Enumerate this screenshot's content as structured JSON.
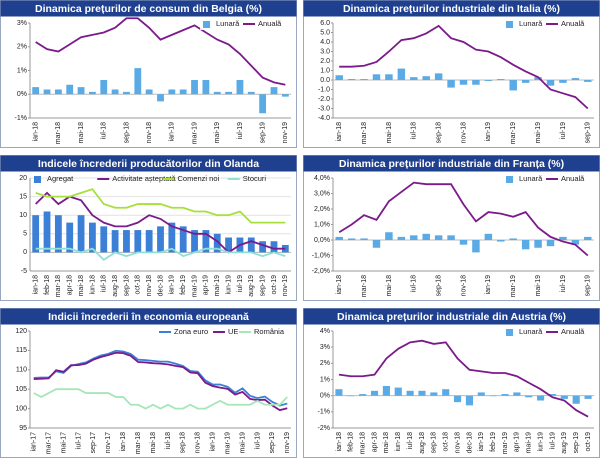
{
  "chart_data": [
    {
      "type": "combo",
      "title": "Dinamica prețurilor de consum din Belgia (%)",
      "legend": "top-right",
      "grid": false,
      "categories": [
        "ian-18",
        null,
        "mar-18",
        null,
        "mai-18",
        null,
        "iul-18",
        null,
        "sep-18",
        null,
        "nov-18",
        null,
        "ian-19",
        null,
        "mar-19",
        null,
        "mai-19",
        null,
        "iul-19",
        null,
        "sep-19",
        null,
        "nov-19"
      ],
      "ylim": [
        -1,
        3
      ],
      "yticks": [
        {
          "value": -1,
          "label": "-1%"
        },
        {
          "value": 0,
          "label": "0%"
        },
        {
          "value": 1,
          "label": "1%"
        },
        {
          "value": 2,
          "label": "2%"
        },
        {
          "value": 3,
          "label": "3%"
        }
      ],
      "series": [
        {
          "name": "Lunară",
          "kind": "bar",
          "color": "#5aaae6",
          "values": [
            0.3,
            0.2,
            0.2,
            0.4,
            0.3,
            0.1,
            0.6,
            0.2,
            0.1,
            1.1,
            0.2,
            -0.3,
            0.2,
            0.2,
            0.6,
            0.6,
            0.1,
            0.1,
            0.6,
            0.1,
            -0.8,
            0.3,
            -0.1
          ]
        },
        {
          "name": "Anuală",
          "kind": "line",
          "color": "#7b1a8a",
          "values": [
            2.2,
            1.9,
            1.8,
            2.1,
            2.4,
            2.5,
            2.6,
            2.8,
            3.2,
            3.2,
            2.8,
            2.3,
            2.5,
            2.7,
            2.9,
            2.6,
            2.3,
            2.1,
            1.7,
            1.2,
            0.7,
            0.5,
            0.4
          ]
        }
      ]
    },
    {
      "type": "combo",
      "title": "Dinamica prețurilor industriale din Italia (%)",
      "legend": "top-right",
      "grid": false,
      "categories": [
        "ian-18",
        null,
        "mar-18",
        null,
        "mai-18",
        null,
        "iul-18",
        null,
        "sep-18",
        null,
        "nov-18",
        null,
        "ian-19",
        null,
        "mar-19",
        null,
        "mai-19",
        null,
        "iul-19",
        null,
        "sep-19"
      ],
      "ylim": [
        -4,
        6
      ],
      "yticks": [
        {
          "value": -4,
          "label": "-4.0"
        },
        {
          "value": -3,
          "label": "-3.0"
        },
        {
          "value": -2,
          "label": "-2.0"
        },
        {
          "value": -1,
          "label": "-1.0"
        },
        {
          "value": 0,
          "label": "0.0"
        },
        {
          "value": 1,
          "label": "1.0"
        },
        {
          "value": 2,
          "label": "2.0"
        },
        {
          "value": 3,
          "label": "3.0"
        },
        {
          "value": 4,
          "label": "4.0"
        },
        {
          "value": 5,
          "label": "5.0"
        },
        {
          "value": 6,
          "label": "6.0"
        }
      ],
      "series": [
        {
          "name": "Lunară",
          "kind": "bar",
          "color": "#5aaae6",
          "values": [
            0.5,
            0.1,
            0.1,
            0.6,
            0.6,
            1.2,
            0.3,
            0.4,
            0.7,
            -0.8,
            -0.5,
            -0.5,
            -0.1,
            0.1,
            -1.1,
            -0.3,
            0.3,
            -0.6,
            -0.3,
            0.2,
            -0.2
          ]
        },
        {
          "name": "Anuală",
          "kind": "line",
          "color": "#7b1a8a",
          "values": [
            1.4,
            1.4,
            1.5,
            1.9,
            3.0,
            4.2,
            4.4,
            4.9,
            5.7,
            4.4,
            4.0,
            3.2,
            3.0,
            2.4,
            1.6,
            0.9,
            0.3,
            -1.0,
            -1.4,
            -1.8,
            -3.0
          ]
        }
      ]
    },
    {
      "type": "combo",
      "title": "Indicele încrederii producătorilor din Olanda",
      "legend": "top",
      "grid": true,
      "categories": [
        "ian-18",
        "feb-18",
        "mar-18",
        "apr-18",
        "mai-18",
        "iun-18",
        "iul-18",
        "aug-18",
        "sep-18",
        "oct-18",
        "nov-18",
        "dec-18",
        "ian-19",
        "feb-19",
        "mar-19",
        "apr-19",
        "mai-19",
        "iun-19",
        "iul-19",
        "aug-19",
        "sep-19",
        "oct-19",
        "nov-19"
      ],
      "ylim": [
        -5,
        20
      ],
      "yticks": [
        -5,
        0,
        5,
        10,
        15,
        20
      ],
      "series": [
        {
          "name": "Agregat",
          "kind": "bar",
          "color": "#3c7fd6",
          "values": [
            10,
            11,
            10,
            8,
            10,
            8,
            7,
            6,
            6,
            6,
            6,
            7,
            8,
            7,
            6,
            6,
            5,
            4,
            4,
            4,
            3,
            3,
            2
          ]
        },
        {
          "name": "Activitate așteptată",
          "kind": "line",
          "color": "#7b1a8a",
          "values": [
            13,
            16,
            13,
            15,
            14,
            10,
            8,
            7,
            7,
            8,
            10,
            9,
            7,
            6,
            5,
            5,
            3,
            0,
            2,
            3,
            2,
            1,
            1
          ]
        },
        {
          "name": "Comenzi noi",
          "kind": "line",
          "color": "#a6e03c",
          "values": [
            16,
            15,
            15,
            15,
            16,
            17,
            13,
            12,
            12,
            13,
            13,
            13,
            12,
            12,
            11,
            11,
            10,
            10,
            11,
            8,
            8,
            8,
            8
          ]
        },
        {
          "name": "Stocuri",
          "kind": "line",
          "color": "#8fe0d8",
          "values": [
            1,
            1,
            1,
            1,
            0,
            1,
            -2,
            0,
            -1,
            0,
            0,
            0,
            1,
            -1,
            0,
            1,
            1,
            0,
            0,
            0,
            -1,
            0,
            -1
          ]
        }
      ]
    },
    {
      "type": "combo",
      "title": "Dinamica prețurilor industriale din Franța (%)",
      "legend": "top-right",
      "grid": false,
      "categories": [
        "ian-18",
        null,
        "mar-18",
        null,
        "mai-18",
        null,
        "iul-18",
        null,
        "sep-18",
        null,
        "nov-18",
        null,
        "ian-19",
        null,
        "mar-19",
        null,
        "mai-19",
        null,
        "iul-19",
        null,
        "sep-19"
      ],
      "ylim": [
        -2,
        4
      ],
      "yticks": [
        {
          "value": -2,
          "label": "-2,0%"
        },
        {
          "value": -1,
          "label": "-1,0%"
        },
        {
          "value": 0,
          "label": "0,0%"
        },
        {
          "value": 1,
          "label": "1,0%"
        },
        {
          "value": 2,
          "label": "2,0%"
        },
        {
          "value": 3,
          "label": "3,0%"
        },
        {
          "value": 4,
          "label": "4,0%"
        }
      ],
      "series": [
        {
          "name": "Lunară",
          "kind": "bar",
          "color": "#5aaae6",
          "values": [
            0.2,
            0.1,
            0.1,
            -0.5,
            0.5,
            0.2,
            0.3,
            0.4,
            0.3,
            0.3,
            -0.3,
            -0.8,
            0.4,
            -0.1,
            0.1,
            -0.6,
            -0.5,
            -0.4,
            0.2,
            -0.3,
            0.2
          ]
        },
        {
          "name": "Anuală",
          "kind": "line",
          "color": "#7b1a8a",
          "values": [
            0.5,
            1.0,
            1.6,
            1.3,
            2.5,
            3.1,
            3.7,
            3.6,
            3.6,
            3.6,
            2.3,
            1.2,
            1.8,
            1.7,
            1.5,
            1.8,
            0.8,
            0.2,
            -0.1,
            -0.3,
            -1.0
          ]
        }
      ]
    },
    {
      "type": "line",
      "title": "Indicii încrederii în economia europeană",
      "legend": "top-right",
      "grid": false,
      "categories": [
        "ian-17",
        null,
        "mar-17",
        null,
        "mai-17",
        null,
        "iul-17",
        null,
        "sep-17",
        null,
        "nov-17",
        null,
        "ian-18",
        null,
        "mar-18",
        null,
        "mai-18",
        null,
        "iul-18",
        null,
        "sep-18",
        null,
        "nov-18",
        null,
        "ian-19",
        null,
        "mar-19",
        null,
        "mai-19",
        null,
        "iul-19",
        null,
        "sep-19",
        null,
        "nov-19"
      ],
      "ylim": [
        95,
        120
      ],
      "yticks": [
        95,
        100,
        105,
        110,
        115,
        120
      ],
      "series": [
        {
          "name": "Zona euro",
          "kind": "line",
          "color": "#3c7fd6",
          "values": [
            107.9,
            108.0,
            108.0,
            109.6,
            109.2,
            111.0,
            111.5,
            111.9,
            112.9,
            113.7,
            114.1,
            114.9,
            114.7,
            114.1,
            112.6,
            112.5,
            112.3,
            112.1,
            112.1,
            111.6,
            111.0,
            109.7,
            109.5,
            107.3,
            106.2,
            106.2,
            105.6,
            104.1,
            105.2,
            103.3,
            102.7,
            103.1,
            101.7,
            100.8,
            101.3
          ]
        },
        {
          "name": "UE",
          "kind": "line",
          "color": "#7b1a8a",
          "values": [
            107.6,
            107.7,
            107.8,
            109.9,
            109.5,
            111.2,
            111.2,
            111.6,
            112.6,
            113.3,
            113.8,
            114.4,
            114.3,
            113.6,
            112.0,
            111.9,
            111.7,
            111.6,
            111.4,
            111.0,
            110.7,
            109.3,
            109.1,
            106.7,
            105.8,
            105.4,
            105.1,
            103.6,
            104.3,
            102.5,
            102.2,
            102.3,
            100.8,
            99.6,
            100.1
          ]
        },
        {
          "name": "România",
          "kind": "line",
          "color": "#a6e6b8",
          "values": [
            104,
            103,
            104,
            105,
            105,
            105,
            105,
            104,
            104,
            104,
            104,
            103,
            103,
            101,
            101,
            100,
            101,
            100,
            101,
            100,
            100,
            101,
            100,
            100,
            101,
            102,
            101,
            101,
            101,
            101,
            102,
            101,
            101,
            101,
            103
          ]
        }
      ]
    },
    {
      "type": "combo",
      "title": "Dinamica prețurilor industriale din Austria (%)",
      "legend": "top-right",
      "grid": false,
      "categories": [
        "ian-18",
        "feb-18",
        "mar-18",
        "apr-18",
        "mai-18",
        "iun-18",
        "iul-18",
        "aug-18",
        "sep-18",
        "oct-18",
        "nov-18",
        "dec-18",
        "ian-19",
        "feb-19",
        "mar-19",
        "apr-19",
        "mai-19",
        "iun-19",
        "iul-19",
        "aug-19",
        "sep-19",
        "oct-19"
      ],
      "ylim": [
        -2,
        4
      ],
      "yticks": [
        {
          "value": -2,
          "label": "-2%"
        },
        {
          "value": -1,
          "label": "-1%"
        },
        {
          "value": 0,
          "label": "0%"
        },
        {
          "value": 1,
          "label": "1%"
        },
        {
          "value": 2,
          "label": "2%"
        },
        {
          "value": 3,
          "label": "3%"
        },
        {
          "value": 4,
          "label": "4%"
        }
      ],
      "series": [
        {
          "name": "Lunară",
          "kind": "bar",
          "color": "#5aaae6",
          "values": [
            0.4,
            0.0,
            0.1,
            0.3,
            0.6,
            0.5,
            0.3,
            0.3,
            0.2,
            0.4,
            -0.4,
            -0.6,
            0.2,
            0.0,
            0.1,
            0.2,
            -0.1,
            -0.3,
            0.1,
            -0.2,
            -0.5,
            -0.2
          ]
        },
        {
          "name": "Anuală",
          "kind": "line",
          "color": "#7b1a8a",
          "values": [
            1.3,
            1.2,
            1.2,
            1.3,
            2.3,
            2.9,
            3.3,
            3.4,
            3.2,
            3.3,
            2.3,
            1.6,
            1.5,
            1.4,
            1.4,
            1.2,
            0.8,
            0.4,
            -0.1,
            -0.3,
            -0.9,
            -1.3
          ]
        }
      ]
    }
  ]
}
